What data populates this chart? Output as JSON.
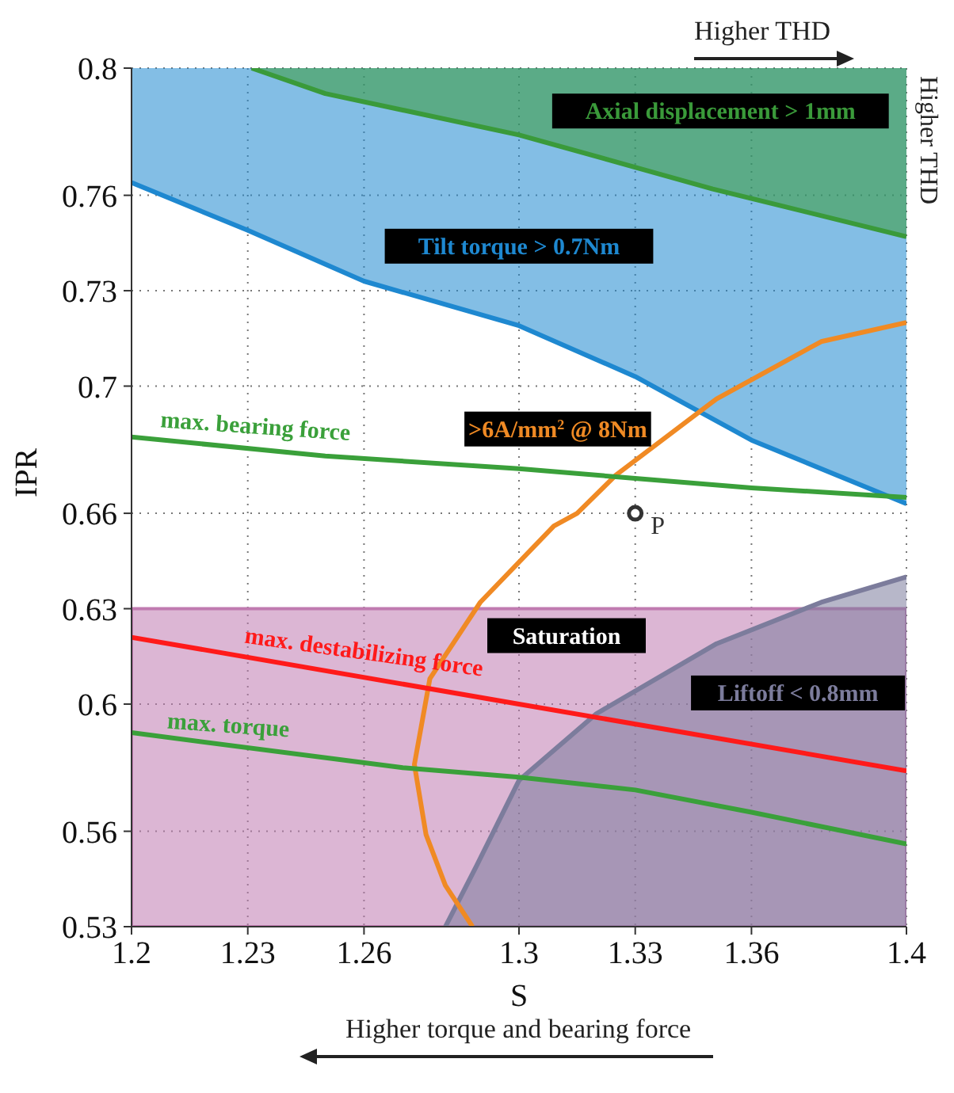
{
  "chart_data": {
    "type": "line",
    "xlabel": "S",
    "ylabel": "IPR",
    "xlim": [
      1.2,
      1.4
    ],
    "xticks": [
      1.2,
      1.23,
      1.26,
      1.3,
      1.33,
      1.36,
      1.4
    ],
    "ylim": [
      0.53,
      0.8
    ],
    "yticks": [
      0.53,
      0.56,
      0.6,
      0.63,
      0.66,
      0.7,
      0.73,
      0.76,
      0.8
    ],
    "grid": true,
    "legend": false,
    "line_style": "solid",
    "bands": [
      {
        "axis": "y",
        "from": 0.53,
        "to": 0.63,
        "label": "Saturation",
        "color": "#c07ab0"
      }
    ],
    "series": [
      {
        "name": "Tilt torque > 0.7Nm",
        "color": "#1e88d0",
        "x": [
          1.2,
          1.23,
          1.26,
          1.3,
          1.33,
          1.36,
          1.4
        ],
        "values": [
          0.764,
          0.749,
          0.733,
          0.719,
          0.703,
          0.683,
          0.663
        ],
        "lower": [
          0.764,
          0.749,
          0.733,
          0.719,
          0.703,
          0.683,
          0.663
        ],
        "upper": [
          0.8,
          0.8,
          0.8,
          0.8,
          0.8,
          0.8,
          0.8
        ]
      },
      {
        "name": "Axial displacement > 1mm",
        "color": "#3a9a3a",
        "x": [
          1.231,
          1.25,
          1.3,
          1.35,
          1.4
        ],
        "values": [
          0.8,
          0.792,
          0.779,
          0.762,
          0.747
        ],
        "lower": [
          0.8,
          0.792,
          0.779,
          0.762,
          0.747
        ],
        "upper": [
          0.8,
          0.8,
          0.8,
          0.8,
          0.8
        ]
      },
      {
        "name": "Liftoff < 0.8mm",
        "color": "#7c7c9c",
        "x": [
          1.281,
          1.289,
          1.3,
          1.32,
          1.351,
          1.378,
          1.4
        ],
        "values": [
          0.53,
          0.549,
          0.576,
          0.597,
          0.619,
          0.632,
          0.64
        ],
        "lower": [
          0.53,
          0.53,
          0.53,
          0.53,
          0.53,
          0.53,
          0.53
        ],
        "upper": [
          0.53,
          0.549,
          0.576,
          0.597,
          0.619,
          0.632,
          0.64
        ]
      },
      {
        "name": ">6A/mm$^{2}$ @ 8Nm",
        "color": "#f08a24",
        "x": [
          1.288,
          1.281,
          1.276,
          1.273,
          1.277,
          1.29,
          1.309,
          1.315,
          1.325,
          1.351,
          1.378,
          1.4
        ],
        "values": [
          0.53,
          0.543,
          0.559,
          0.581,
          0.608,
          0.632,
          0.656,
          0.66,
          0.672,
          0.696,
          0.714,
          0.72
        ]
      },
      {
        "name": "max. bearing force",
        "color": "#3aa03a",
        "x": [
          1.2,
          1.25,
          1.3,
          1.33,
          1.36,
          1.4
        ],
        "values": [
          0.684,
          0.678,
          0.674,
          0.671,
          0.668,
          0.665
        ]
      },
      {
        "name": "max. destabilizing force",
        "color": "#ff1a1a",
        "x": [
          1.2,
          1.3,
          1.4
        ],
        "values": [
          0.621,
          0.6,
          0.579
        ]
      },
      {
        "name": "max. torque",
        "color": "#3aa03a",
        "x": [
          1.2,
          1.27,
          1.3,
          1.33,
          1.36,
          1.4
        ],
        "values": [
          0.591,
          0.58,
          0.577,
          0.573,
          0.566,
          0.556
        ]
      },
      {
        "name": "P",
        "type": "scatter",
        "marker": "circle",
        "color": "#333333",
        "x": [
          1.33
        ],
        "values": [
          0.66
        ]
      }
    ],
    "annotations": [
      "Higher THD",
      "Higher THD",
      "Higher torque and bearing force"
    ]
  }
}
